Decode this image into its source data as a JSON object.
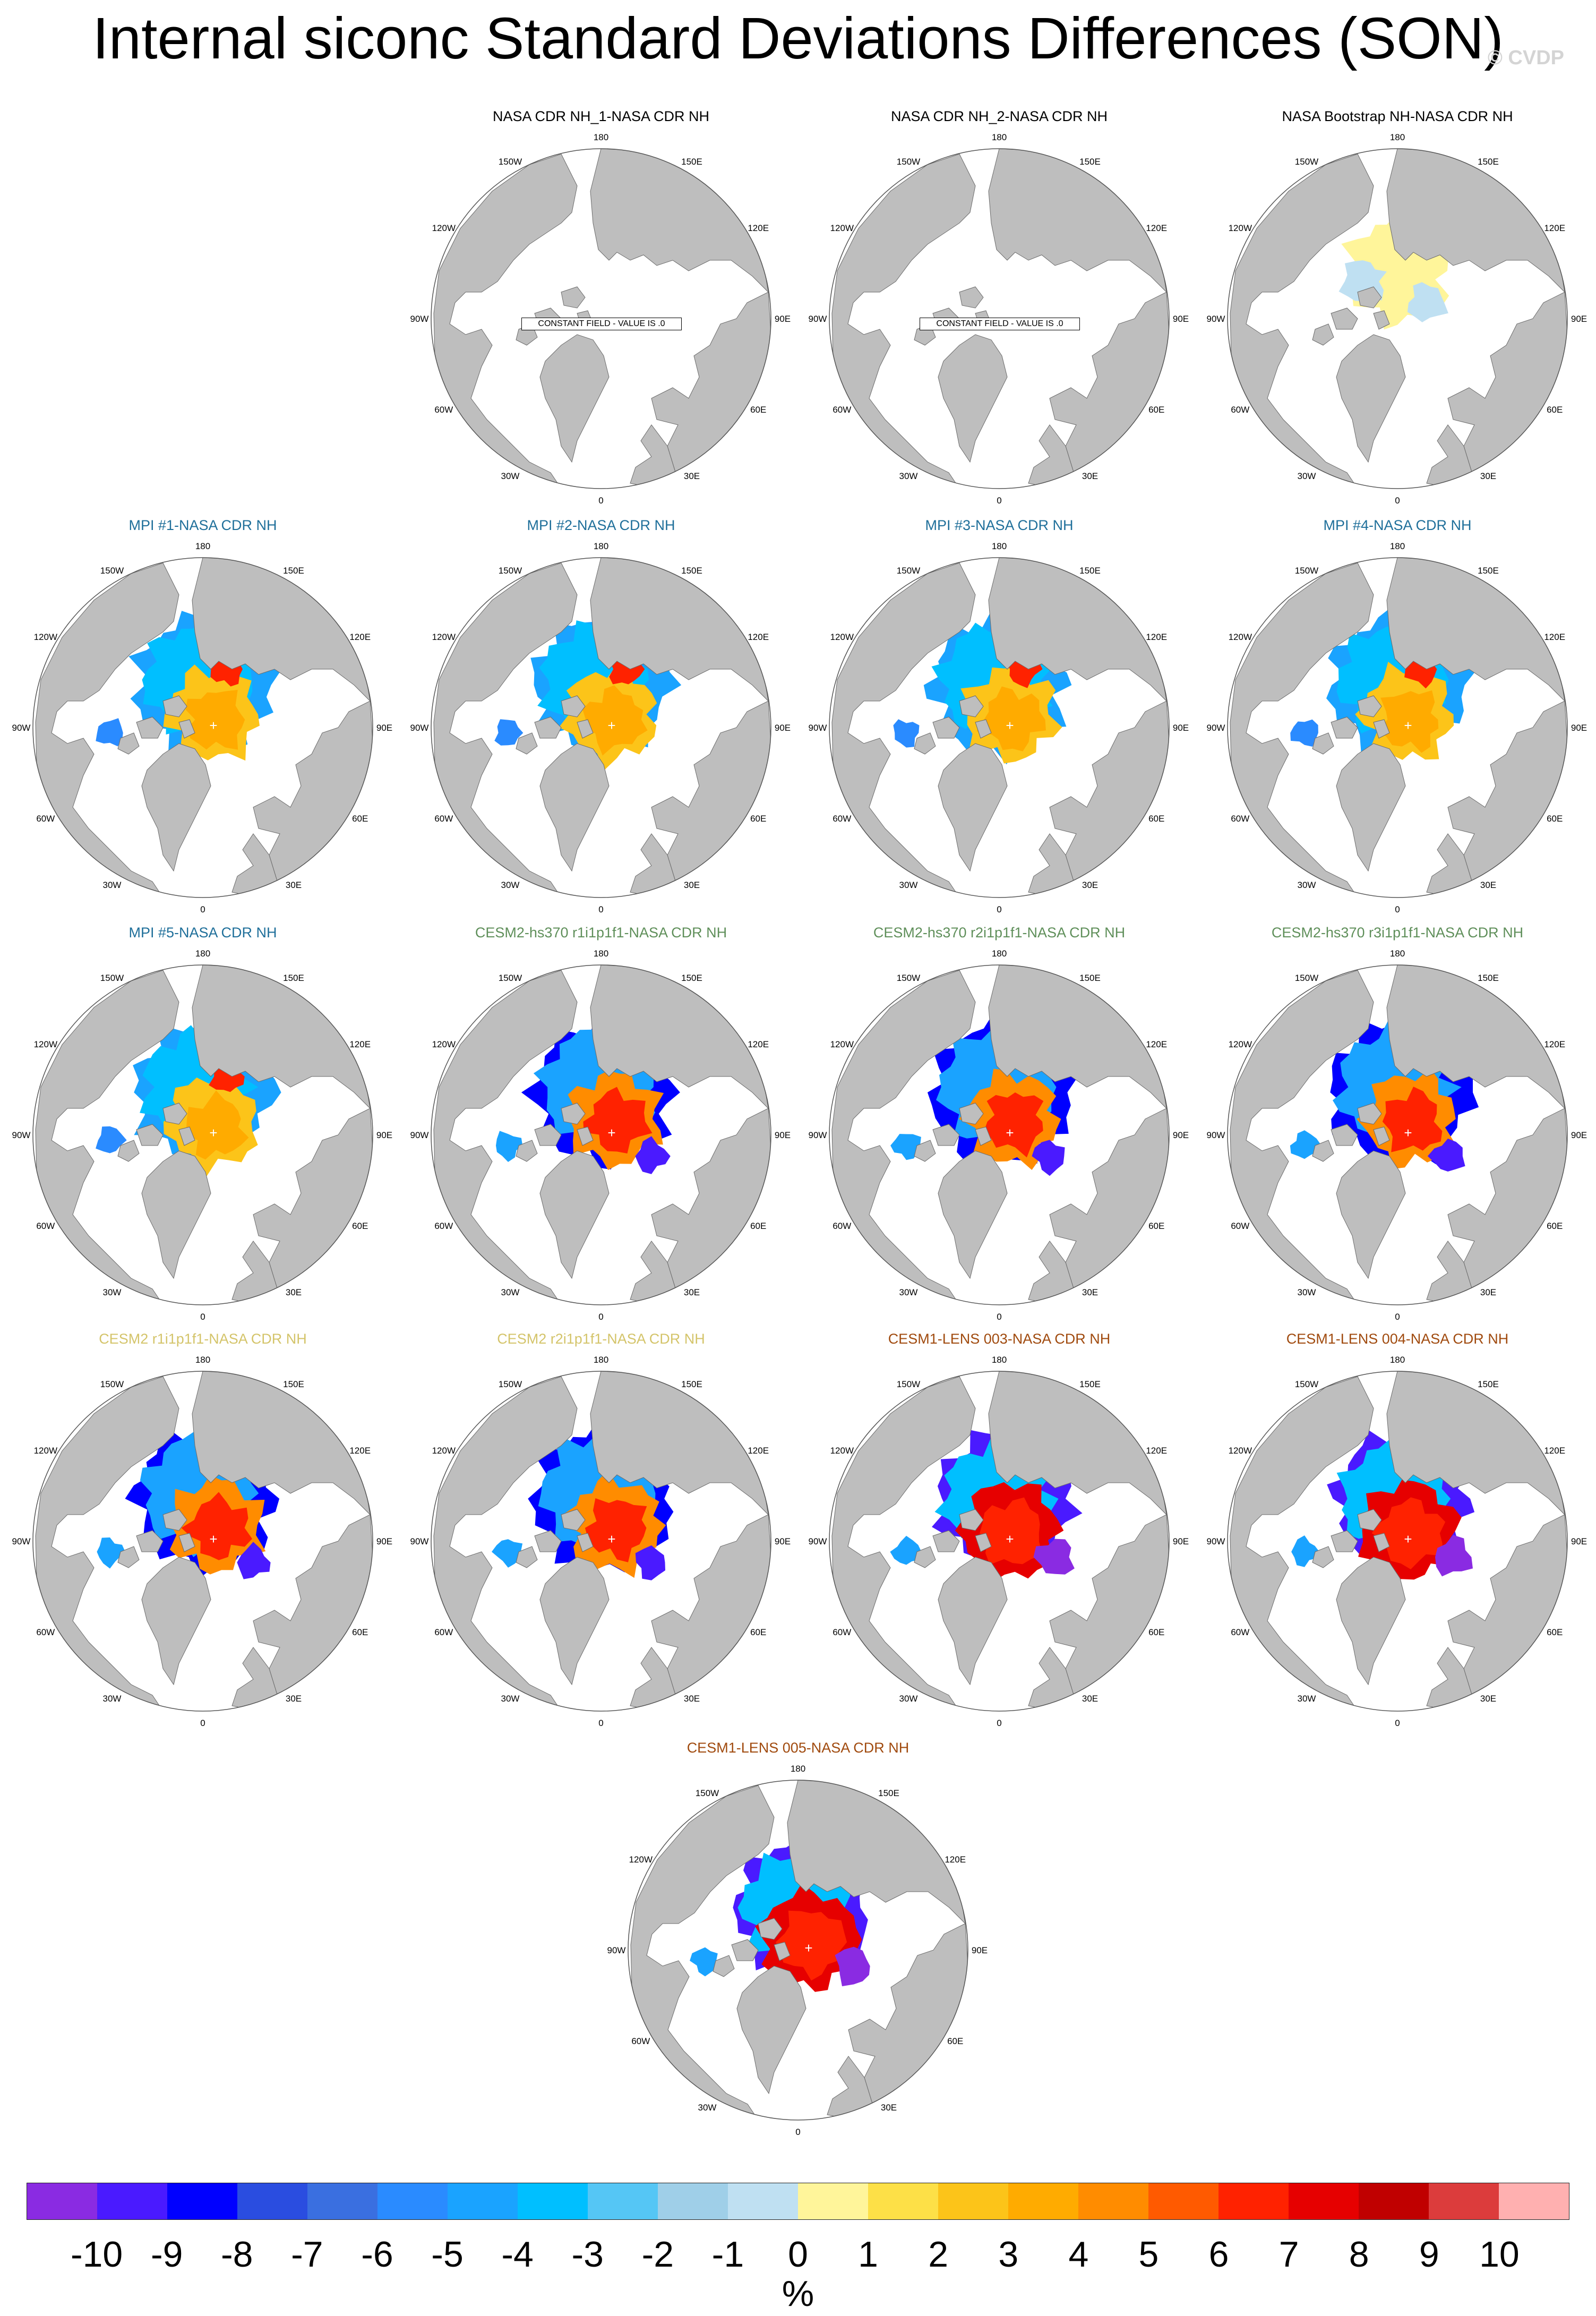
{
  "title": "Internal siconc Standard Deviations Differences (SON)",
  "watermark": "© CVDP",
  "constant_field_label": "CONSTANT FIELD - VALUE IS .0",
  "map_labels": [
    "180",
    "150E",
    "120E",
    "90E",
    "60E",
    "30E",
    "0",
    "30W",
    "60W",
    "90W",
    "120W",
    "150W"
  ],
  "colors": {
    "land": "#bebebe",
    "ocean": "#ffffff",
    "title_obs": "#000000",
    "title_mpi": "#1f6f9a",
    "title_cesm2hs": "#5f8f5a",
    "title_cesm2": "#d4c46a",
    "title_cesm1": "#a04a0e"
  },
  "panels": [
    {
      "title": "NASA CDR NH_1-NASA CDR NH",
      "group": "obs",
      "pattern": "constant"
    },
    {
      "title": "NASA CDR NH_2-NASA CDR NH",
      "group": "obs",
      "pattern": "constant"
    },
    {
      "title": "NASA Bootstrap NH-NASA CDR NH",
      "group": "obs",
      "pattern": "bootstrap"
    },
    {
      "title": "MPI #1-NASA CDR NH",
      "group": "mpi",
      "pattern": "mpi"
    },
    {
      "title": "MPI #2-NASA CDR NH",
      "group": "mpi",
      "pattern": "mpi"
    },
    {
      "title": "MPI #3-NASA CDR NH",
      "group": "mpi",
      "pattern": "mpi"
    },
    {
      "title": "MPI #4-NASA CDR NH",
      "group": "mpi",
      "pattern": "mpi"
    },
    {
      "title": "MPI #5-NASA CDR NH",
      "group": "mpi",
      "pattern": "mpi"
    },
    {
      "title": "CESM2-hs370 r1i1p1f1-NASA CDR NH",
      "group": "cesm2hs",
      "pattern": "cesm"
    },
    {
      "title": "CESM2-hs370 r2i1p1f1-NASA CDR NH",
      "group": "cesm2hs",
      "pattern": "cesm"
    },
    {
      "title": "CESM2-hs370 r3i1p1f1-NASA CDR NH",
      "group": "cesm2hs",
      "pattern": "cesm"
    },
    {
      "title": "CESM2 r1i1p1f1-NASA CDR NH",
      "group": "cesm2",
      "pattern": "cesm"
    },
    {
      "title": "CESM2 r2i1p1f1-NASA CDR NH",
      "group": "cesm2",
      "pattern": "cesm"
    },
    {
      "title": "CESM1-LENS 003-NASA CDR NH",
      "group": "cesm1",
      "pattern": "lens"
    },
    {
      "title": "CESM1-LENS 004-NASA CDR NH",
      "group": "cesm1",
      "pattern": "lens"
    },
    {
      "title": "CESM1-LENS 005-NASA CDR NH",
      "group": "cesm1",
      "pattern": "lens"
    }
  ],
  "colorbar": {
    "colors": [
      "#8a2be2",
      "#4a1aff",
      "#0000ff",
      "#2a4de0",
      "#3a6fe0",
      "#2a8bff",
      "#1aa3ff",
      "#00bfff",
      "#55c6f5",
      "#9fcfe8",
      "#bfe0f2",
      "#fff59a",
      "#fde047",
      "#fcc419",
      "#ffab00",
      "#ff8c00",
      "#ff5a00",
      "#ff2200",
      "#e60000",
      "#c00000",
      "#dc3c3c",
      "#ffb0b0"
    ],
    "ticks": [
      "-10",
      "-9",
      "-8",
      "-7",
      "-6",
      "-5",
      "-4",
      "-3",
      "-2",
      "-1",
      "0",
      "1",
      "2",
      "3",
      "4",
      "5",
      "6",
      "7",
      "8",
      "9",
      "10"
    ],
    "unit": "%"
  }
}
